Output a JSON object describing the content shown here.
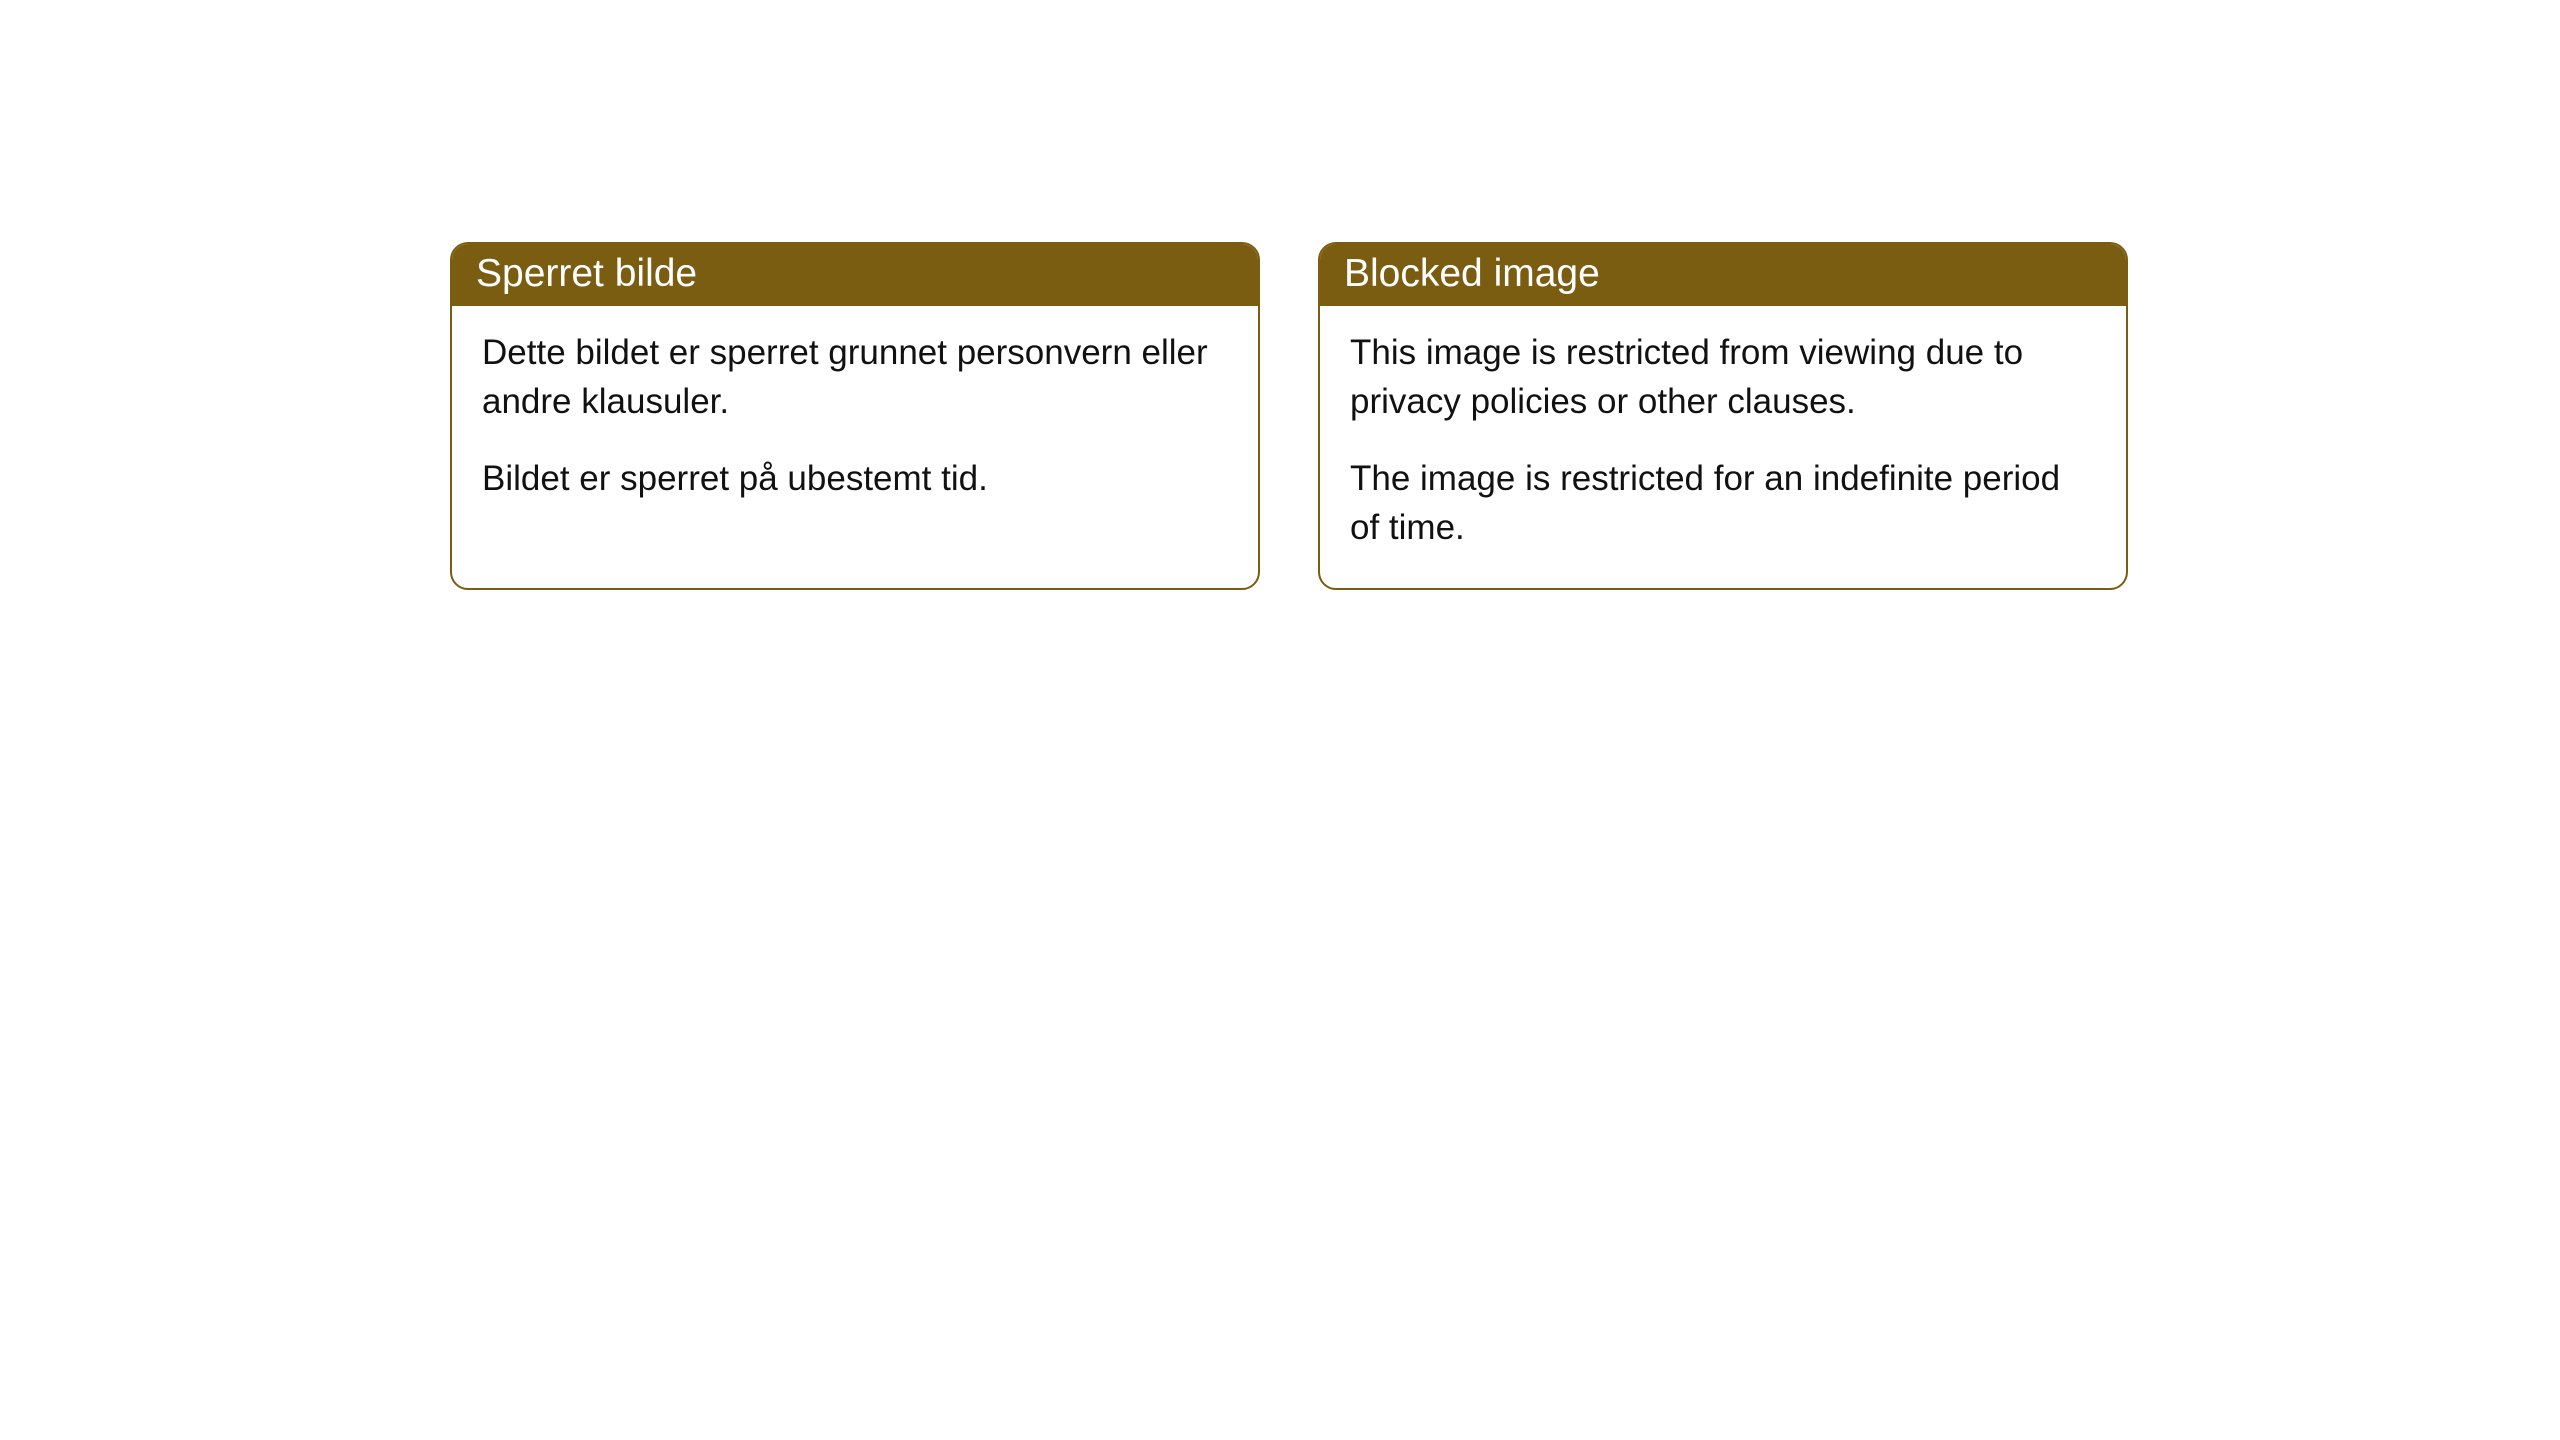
{
  "cards": [
    {
      "title": "Sperret bilde",
      "paragraph1": "Dette bildet er sperret grunnet personvern eller andre klausuler.",
      "paragraph2": "Bildet er sperret på ubestemt tid."
    },
    {
      "title": "Blocked image",
      "paragraph1": "This image is restricted from viewing due to privacy policies or other clauses.",
      "paragraph2": "The image is restricted for an indefinite period of time."
    }
  ],
  "style": {
    "header_bg": "#7a5d10",
    "header_text": "#ffffff",
    "border_color": "#7a5d10",
    "body_bg": "#ffffff",
    "body_text": "#111111",
    "border_radius": 18,
    "title_fontsize": 39,
    "body_fontsize": 35
  }
}
